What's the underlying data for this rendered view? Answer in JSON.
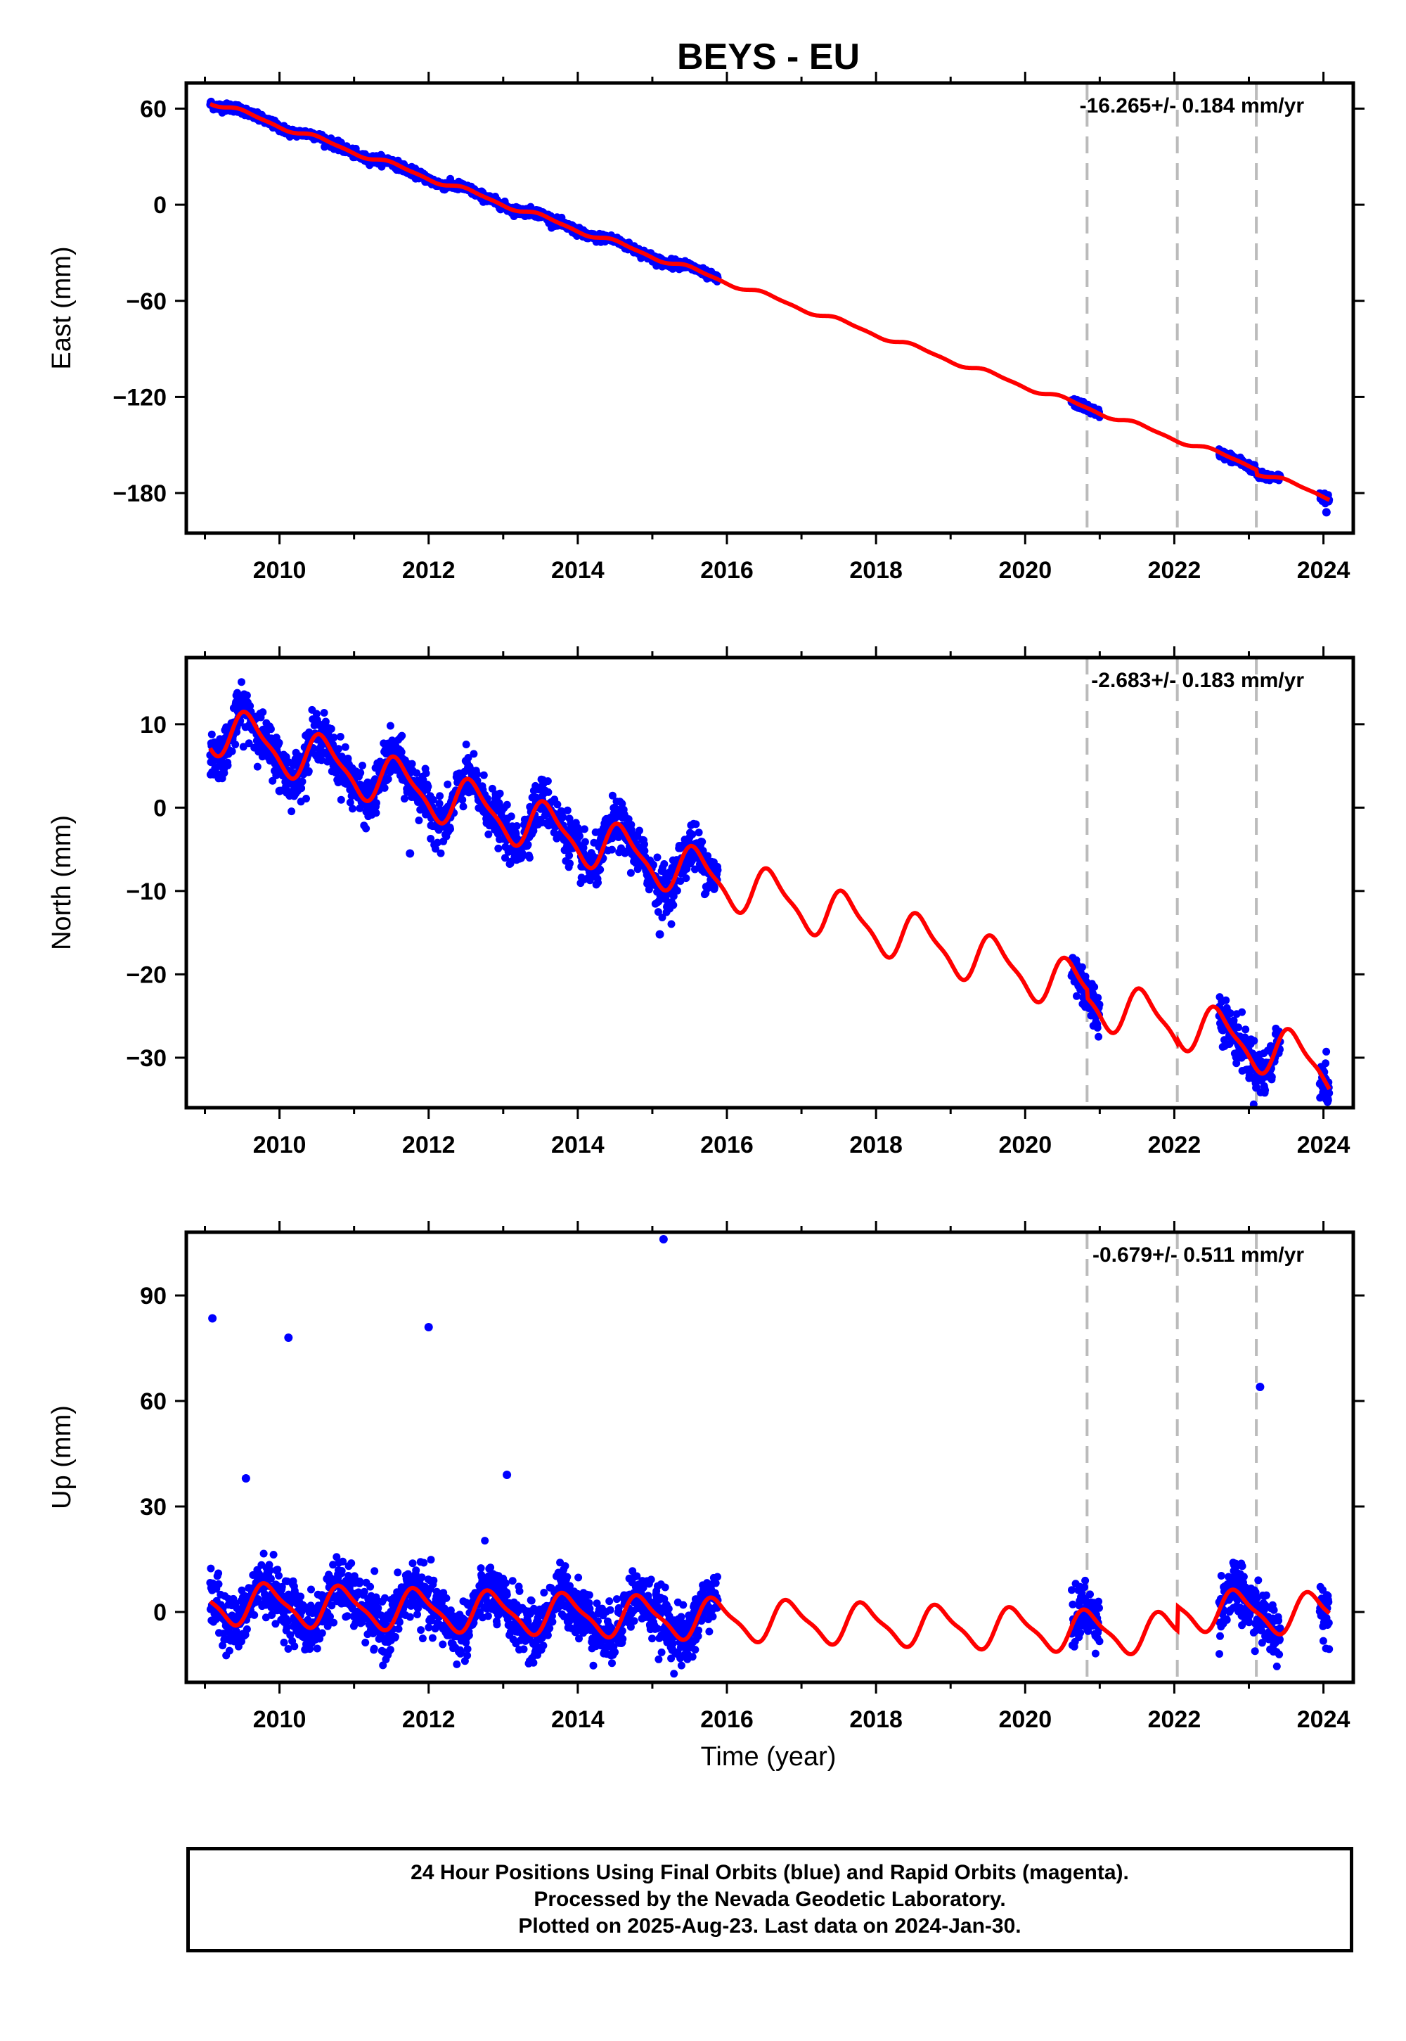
{
  "figure": {
    "title": "BEYS - EU",
    "xlabel": "Time (year)",
    "footer": [
      "24 Hour Positions Using Final Orbits (blue) and Rapid Orbits (magenta).",
      "Processed by the Nevada Geodetic Laboratory.",
      "Plotted on 2025-Aug-23. Last data on 2024-Jan-30."
    ],
    "colors": {
      "points": "#0000ff",
      "model": "#ff0000",
      "steps": "#bbbbbb"
    }
  },
  "chart_data": [
    {
      "type": "scatter",
      "component": "east",
      "ylabel": "East (mm)",
      "rate_text": "-16.265+/- 0.184 mm/yr",
      "xlim": [
        2008.75,
        2024.4
      ],
      "ylim": [
        -205,
        76
      ],
      "xticks": [
        2010,
        2012,
        2014,
        2016,
        2018,
        2020,
        2022,
        2024
      ],
      "yticks": [
        60,
        0,
        -60,
        -120,
        -180
      ],
      "step_lines": [
        2020.83,
        2022.04,
        2023.1
      ],
      "data_spans": [
        [
          2009.07,
          2015.88
        ],
        [
          2020.62,
          2021.0
        ],
        [
          2022.6,
          2023.42
        ],
        [
          2023.95,
          2024.08
        ]
      ],
      "model": {
        "ref_year": 2009.1,
        "intercept": 64,
        "rate": -16.265,
        "annual_amp": 1.5,
        "semiannual_amp": 0.5,
        "phase": 0.3,
        "offsets": [
          {
            "year": 2023.1,
            "value": -3
          }
        ]
      },
      "scatter_sigma": 1.3,
      "outliers": [
        {
          "x": 2024.04,
          "y": -192
        }
      ]
    },
    {
      "type": "scatter",
      "component": "north",
      "ylabel": "North (mm)",
      "rate_text": "-2.683+/- 0.183 mm/yr",
      "xlim": [
        2008.75,
        2024.4
      ],
      "ylim": [
        -36,
        18
      ],
      "xticks": [
        2010,
        2012,
        2014,
        2016,
        2018,
        2020,
        2022,
        2024
      ],
      "yticks": [
        10,
        0,
        -10,
        -20,
        -30
      ],
      "step_lines": [
        2020.83,
        2022.04,
        2023.1
      ],
      "data_spans": [
        [
          2009.07,
          2015.88
        ],
        [
          2020.62,
          2021.0
        ],
        [
          2022.6,
          2023.42
        ],
        [
          2023.95,
          2024.08
        ]
      ],
      "model": {
        "ref_year": 2009.1,
        "intercept": 9.5,
        "rate": -2.683,
        "annual_amp": 2.8,
        "semiannual_amp": 0.8,
        "phase": 0.35,
        "offsets": [
          {
            "year": 2020.83,
            "value": -1
          },
          {
            "year": 2022.04,
            "value": 0.5
          }
        ]
      },
      "scatter_sigma": 1.4,
      "outliers": [
        {
          "x": 2009.12,
          "y": 4.0
        },
        {
          "x": 2010.0,
          "y": 2.0
        },
        {
          "x": 2011.75,
          "y": -5.5
        },
        {
          "x": 2015.1,
          "y": -15.2
        },
        {
          "x": 2024.04,
          "y": -35.0
        }
      ]
    },
    {
      "type": "scatter",
      "component": "up",
      "ylabel": "Up (mm)",
      "rate_text": "-0.679+/- 0.511 mm/yr",
      "xlim": [
        2008.75,
        2024.4
      ],
      "ylim": [
        -20,
        108
      ],
      "xticks": [
        2010,
        2012,
        2014,
        2016,
        2018,
        2020,
        2022,
        2024
      ],
      "yticks": [
        90,
        60,
        30,
        0
      ],
      "step_lines": [
        2020.83,
        2022.04,
        2023.1
      ],
      "data_spans": [
        [
          2009.07,
          2015.88
        ],
        [
          2020.62,
          2021.0
        ],
        [
          2022.6,
          2023.42
        ],
        [
          2023.95,
          2024.08
        ]
      ],
      "model": {
        "ref_year": 2009.1,
        "intercept": 2.5,
        "rate": -0.679,
        "annual_amp": 5.5,
        "semiannual_amp": 1.5,
        "phase": 0.6,
        "offsets": [
          {
            "year": 2022.04,
            "value": 7
          }
        ]
      },
      "scatter_sigma": 4.0,
      "outliers": [
        {
          "x": 2009.1,
          "y": 83.5
        },
        {
          "x": 2010.12,
          "y": 78
        },
        {
          "x": 2012.0,
          "y": 81
        },
        {
          "x": 2013.05,
          "y": 39
        },
        {
          "x": 2015.15,
          "y": 106
        },
        {
          "x": 2023.15,
          "y": 64
        },
        {
          "x": 2009.55,
          "y": 38
        }
      ]
    }
  ]
}
